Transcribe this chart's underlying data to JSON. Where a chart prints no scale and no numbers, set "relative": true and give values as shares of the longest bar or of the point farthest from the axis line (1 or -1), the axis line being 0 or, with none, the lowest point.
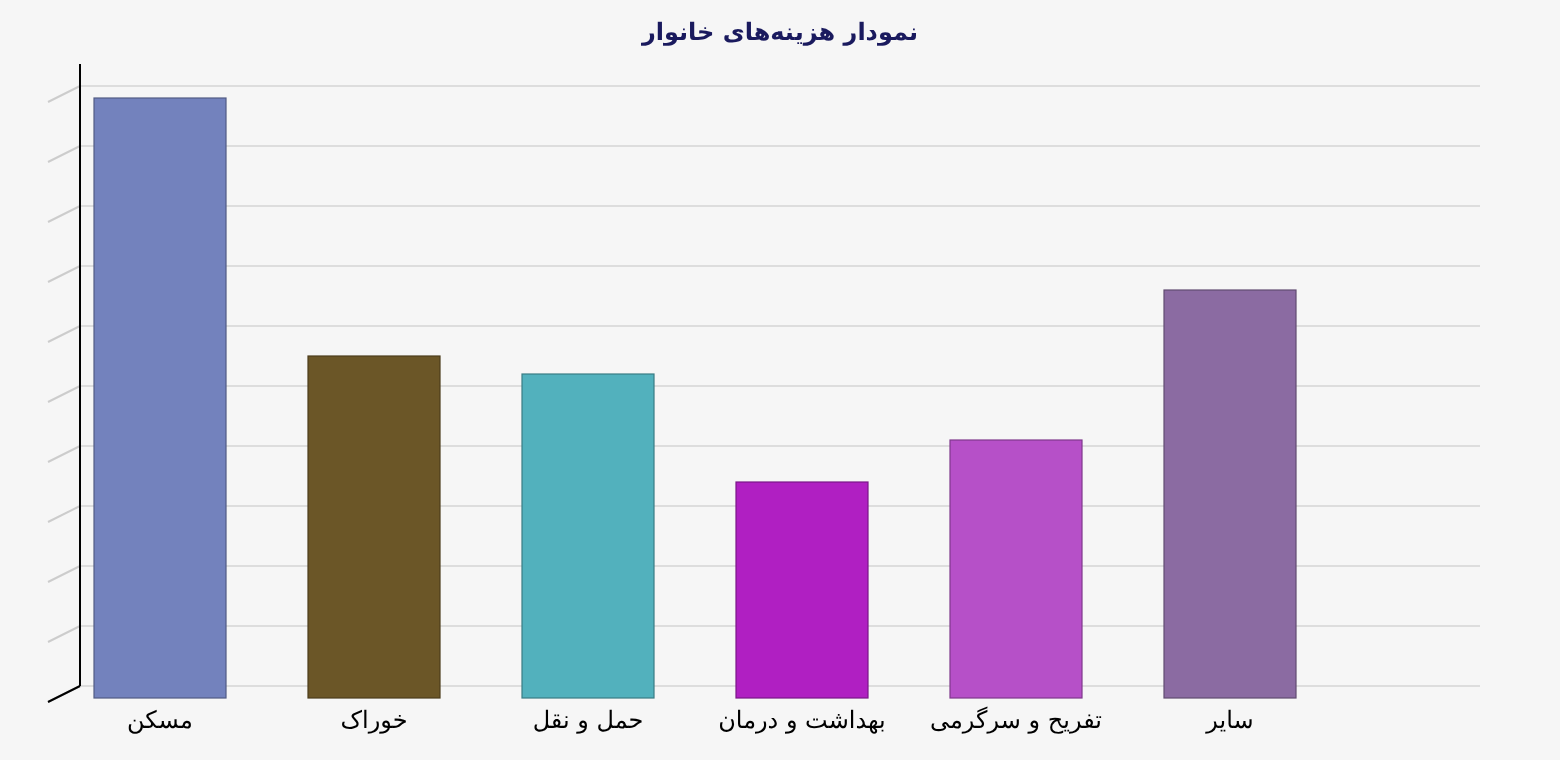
{
  "chart_data": {
    "type": "bar",
    "title": "نمودار هزینه‌های خانوار",
    "relative": true,
    "grid": true,
    "categories": [
      "مسکن",
      "خوراک",
      "حمل و نقل",
      "بهداشت و درمان",
      "تفریح و سرگرمی",
      "سایر"
    ],
    "values": [
      1,
      0.57,
      0.54,
      0.36,
      0.43,
      0.68
    ],
    "colors": [
      "#7382bd",
      "#6b5627",
      "#52b1bd",
      "#b01fc2",
      "#b650c8",
      "#8b6ba2"
    ]
  }
}
